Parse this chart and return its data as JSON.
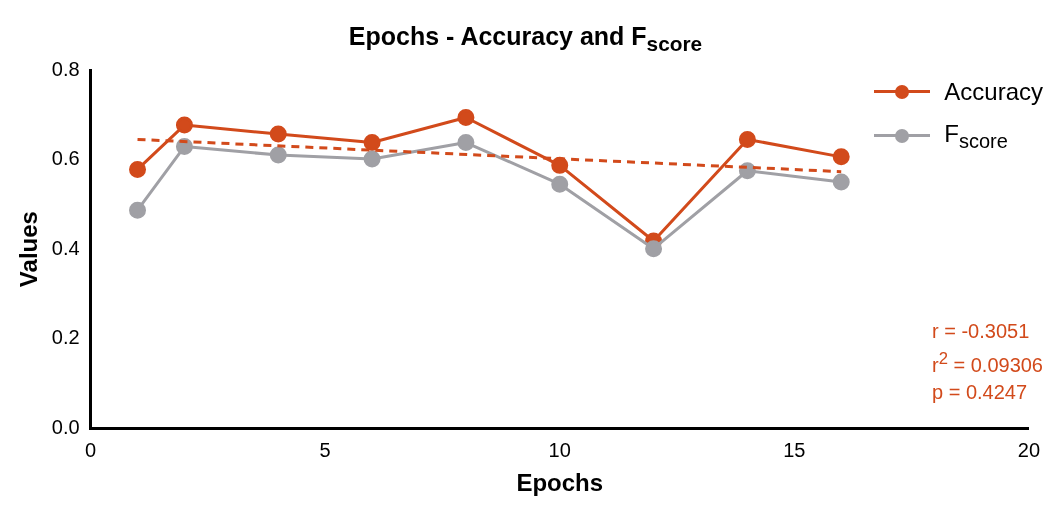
{
  "chart_data": {
    "type": "line",
    "title": "Epochs - Accuracy and F$_{score}$",
    "xlabel": "Epochs",
    "ylabel": "Values",
    "xlim": [
      0,
      20
    ],
    "xticks": [
      0,
      5,
      10,
      15,
      20
    ],
    "ylim": [
      0,
      0.8
    ],
    "yticks": [
      {
        "value": 0,
        "label": "0.0"
      },
      0.2,
      0.4,
      0.6,
      0.8
    ],
    "x": [
      1,
      2,
      4,
      6,
      8,
      10,
      12,
      14,
      16
    ],
    "series": [
      {
        "name": "Accuracy",
        "color": "#d24a1b",
        "values": [
          0.578,
          0.677,
          0.657,
          0.638,
          0.694,
          0.587,
          0.418,
          0.645,
          0.606
        ]
      },
      {
        "name": "F$_{score}$",
        "color": "#a0a0a5",
        "values": [
          0.487,
          0.629,
          0.61,
          0.601,
          0.638,
          0.545,
          0.401,
          0.575,
          0.55
        ]
      },
      {
        "type": "line",
        "color": "#d24a1b",
        "x": [
          1,
          16
        ],
        "values": [
          0.645,
          0.573
        ],
        "line_style": "dashed",
        "marker": "none"
      }
    ],
    "marker": "circle",
    "line_style": "solid",
    "grid": false,
    "legend": "top right",
    "annotations": [
      "r = -0.3051",
      "r$^{2}$ = 0.09306",
      "p = 0.4247"
    ]
  }
}
